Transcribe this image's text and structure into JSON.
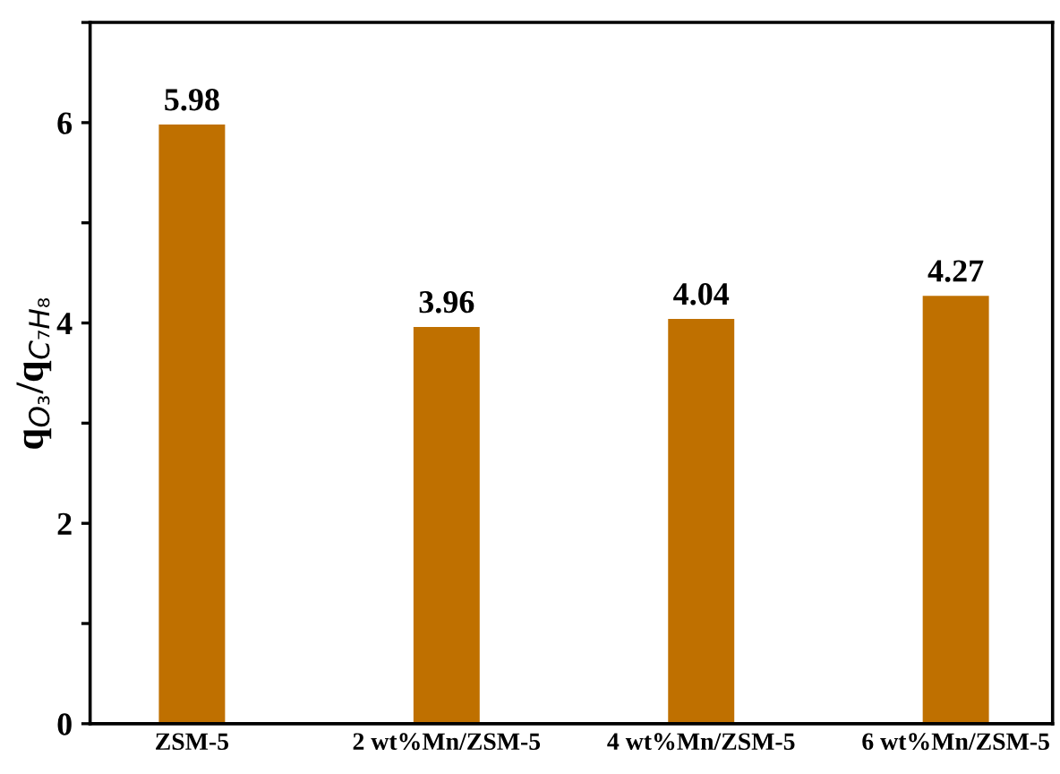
{
  "chart_data": {
    "type": "bar",
    "ylabel": "q$_{O₃}$/q$_{C₇H₈}$",
    "categories": [
      "ZSM-5",
      "2 wt%Mn/ZSM-5",
      "4 wt%Mn/ZSM-5",
      "6 wt%Mn/ZSM-5"
    ],
    "values": [
      5.98,
      3.96,
      4.04,
      4.27
    ],
    "color": "#bf7000",
    "ylim": [
      0,
      7
    ],
    "yticks": [
      0,
      {
        "value": 1,
        "label": null
      },
      2,
      {
        "value": 3,
        "label": null
      },
      4,
      {
        "value": 5,
        "label": null
      },
      6,
      {
        "value": 7,
        "label": null
      }
    ],
    "data_labels": true,
    "grid": false,
    "legend": false
  }
}
